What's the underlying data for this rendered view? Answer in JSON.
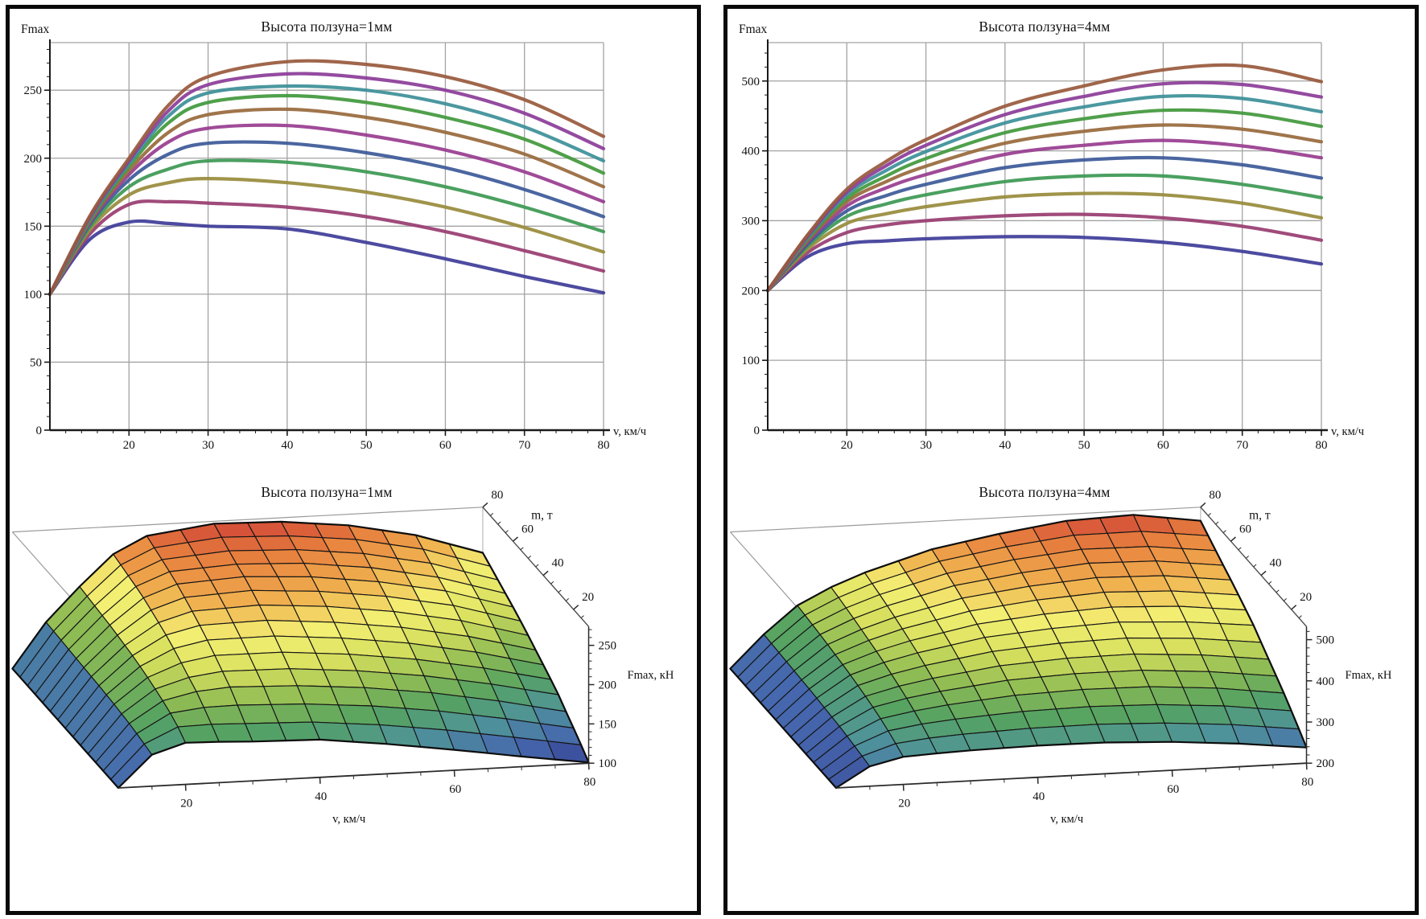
{
  "page": {
    "background": "#ffffff",
    "panel_border": "#0a0a0a"
  },
  "panels": [
    {
      "name": "slider-height-1mm",
      "line_chart": 0,
      "surface_chart": 2
    },
    {
      "name": "slider-height-4mm",
      "line_chart": 1,
      "surface_chart": 3
    }
  ],
  "chart_data": [
    {
      "type": "line",
      "title": "Высота ползуна=1мм",
      "xlabel": "v, км/ч",
      "ylabel": "Fmax",
      "x": [
        10,
        15,
        20,
        25,
        30,
        40,
        50,
        60,
        70,
        80
      ],
      "xlim": [
        10,
        80
      ],
      "ylim": [
        0,
        285
      ],
      "x_ticks": [
        20,
        30,
        40,
        50,
        60,
        70,
        80
      ],
      "y_ticks": [
        0,
        50,
        100,
        150,
        200,
        250
      ],
      "grid": true,
      "legend": "none",
      "series": [
        {
          "name": "curve-1",
          "color": "#3F3D99",
          "values": [
            100,
            140,
            153,
            152,
            150,
            148,
            138,
            126,
            113,
            101
          ]
        },
        {
          "name": "curve-2",
          "color": "#993D71",
          "values": [
            100,
            144,
            166,
            168,
            167,
            164,
            157,
            146,
            132,
            117
          ]
        },
        {
          "name": "curve-3",
          "color": "#998C3D",
          "values": [
            100,
            147,
            173,
            182,
            185,
            182,
            175,
            164,
            149,
            131
          ]
        },
        {
          "name": "curve-4",
          "color": "#3D9954",
          "values": [
            100,
            149,
            179,
            192,
            198,
            197,
            190,
            179,
            164,
            146
          ]
        },
        {
          "name": "curve-5",
          "color": "#3D5A99",
          "values": [
            100,
            151,
            184,
            203,
            211,
            211,
            204,
            193,
            177,
            157
          ]
        },
        {
          "name": "curve-6",
          "color": "#993D90",
          "values": [
            100,
            152,
            188,
            212,
            222,
            224,
            217,
            206,
            190,
            168
          ]
        },
        {
          "name": "curve-7",
          "color": "#996B3D",
          "values": [
            100,
            153,
            191,
            219,
            232,
            236,
            230,
            219,
            203,
            179
          ]
        },
        {
          "name": "curve-8",
          "color": "#43993D",
          "values": [
            100,
            154,
            194,
            226,
            241,
            246,
            241,
            230,
            214,
            189
          ]
        },
        {
          "name": "curve-9",
          "color": "#3D9099",
          "values": [
            100,
            155,
            196,
            231,
            248,
            253,
            250,
            240,
            223,
            198
          ]
        },
        {
          "name": "curve-10",
          "color": "#8C3D99",
          "values": [
            100,
            156,
            198,
            235,
            254,
            262,
            259,
            250,
            233,
            207
          ]
        },
        {
          "name": "curve-11",
          "color": "#995A3D",
          "values": [
            100,
            157,
            200,
            239,
            260,
            271,
            269,
            260,
            243,
            216
          ]
        }
      ]
    },
    {
      "type": "line",
      "title": "Высота ползуна=4мм",
      "xlabel": "v, км/ч",
      "ylabel": "Fmax",
      "x": [
        10,
        15,
        20,
        25,
        30,
        40,
        50,
        60,
        70,
        80
      ],
      "xlim": [
        10,
        80
      ],
      "ylim": [
        0,
        555
      ],
      "x_ticks": [
        20,
        30,
        40,
        50,
        60,
        70,
        80
      ],
      "y_ticks": [
        0,
        100,
        200,
        300,
        400,
        500
      ],
      "grid": true,
      "legend": "none",
      "series": [
        {
          "name": "curve-1",
          "color": "#3F3D99",
          "values": [
            200,
            248,
            267,
            271,
            274,
            277,
            276,
            269,
            256,
            238
          ]
        },
        {
          "name": "curve-2",
          "color": "#993D71",
          "values": [
            200,
            254,
            283,
            294,
            300,
            307,
            309,
            304,
            292,
            272
          ]
        },
        {
          "name": "curve-3",
          "color": "#998C3D",
          "values": [
            200,
            259,
            296,
            310,
            320,
            334,
            339,
            337,
            325,
            304
          ]
        },
        {
          "name": "curve-4",
          "color": "#3D9954",
          "values": [
            200,
            263,
            306,
            324,
            337,
            356,
            364,
            364,
            352,
            333
          ]
        },
        {
          "name": "curve-5",
          "color": "#3D5A99",
          "values": [
            200,
            266,
            314,
            336,
            352,
            376,
            387,
            390,
            380,
            361
          ]
        },
        {
          "name": "curve-6",
          "color": "#993D90",
          "values": [
            200,
            269,
            321,
            347,
            366,
            395,
            408,
            415,
            407,
            390
          ]
        },
        {
          "name": "curve-7",
          "color": "#996B3D",
          "values": [
            200,
            271,
            327,
            356,
            378,
            411,
            428,
            437,
            431,
            413
          ]
        },
        {
          "name": "curve-8",
          "color": "#43993D",
          "values": [
            200,
            273,
            332,
            364,
            389,
            426,
            446,
            458,
            454,
            435
          ]
        },
        {
          "name": "curve-9",
          "color": "#3D9099",
          "values": [
            200,
            275,
            337,
            372,
            399,
            440,
            463,
            478,
            475,
            456
          ]
        },
        {
          "name": "curve-10",
          "color": "#8C3D99",
          "values": [
            200,
            277,
            341,
            379,
            408,
            452,
            478,
            496,
            495,
            477
          ]
        },
        {
          "name": "curve-11",
          "color": "#995A3D",
          "values": [
            200,
            279,
            345,
            385,
            416,
            464,
            493,
            516,
            522,
            499
          ]
        }
      ]
    },
    {
      "type": "surface",
      "title": "Высота ползуна=1мм",
      "xlabel": "v, км/ч",
      "ylabel": "m, т",
      "zlabel": "Fmax, кН",
      "v": [
        10,
        15,
        20,
        25,
        30,
        40,
        50,
        60,
        70,
        80
      ],
      "m": [
        10,
        17,
        24,
        31,
        38,
        45,
        52,
        59,
        66,
        73,
        80
      ],
      "v_ticks": [
        20,
        40,
        60,
        80
      ],
      "m_ticks": [
        20,
        40,
        60,
        80
      ],
      "z_ticks": [
        100,
        150,
        200,
        250
      ],
      "zlim": [
        100,
        272
      ],
      "colormap": [
        "#343a8c",
        "#4668ae",
        "#4f939a",
        "#55a262",
        "#8fbc54",
        "#d8e05e",
        "#f3ef73",
        "#f0b14f",
        "#e8833f",
        "#d04236"
      ],
      "z_rows": [
        [
          100,
          140,
          153,
          152,
          150,
          148,
          138,
          126,
          113,
          101
        ],
        [
          100,
          144,
          166,
          168,
          167,
          164,
          157,
          146,
          132,
          117
        ],
        [
          100,
          147,
          173,
          182,
          185,
          182,
          175,
          164,
          149,
          131
        ],
        [
          100,
          149,
          179,
          192,
          198,
          197,
          190,
          179,
          164,
          146
        ],
        [
          100,
          151,
          184,
          203,
          211,
          211,
          204,
          193,
          177,
          157
        ],
        [
          100,
          152,
          188,
          212,
          222,
          224,
          217,
          206,
          190,
          168
        ],
        [
          100,
          153,
          191,
          219,
          232,
          236,
          230,
          219,
          203,
          179
        ],
        [
          100,
          154,
          194,
          226,
          241,
          246,
          241,
          230,
          214,
          189
        ],
        [
          100,
          155,
          196,
          231,
          248,
          253,
          250,
          240,
          223,
          198
        ],
        [
          100,
          156,
          198,
          235,
          254,
          262,
          259,
          250,
          233,
          207
        ],
        [
          100,
          157,
          200,
          239,
          260,
          271,
          269,
          260,
          243,
          216
        ]
      ]
    },
    {
      "type": "surface",
      "title": "Высота ползуна=4мм",
      "xlabel": "v, км/ч",
      "ylabel": "m, т",
      "zlabel": "Fmax, кН",
      "v": [
        10,
        15,
        20,
        25,
        30,
        40,
        50,
        60,
        70,
        80
      ],
      "m": [
        10,
        17,
        24,
        31,
        38,
        45,
        52,
        59,
        66,
        73,
        80
      ],
      "v_ticks": [
        20,
        40,
        60,
        80
      ],
      "m_ticks": [
        20,
        40,
        60,
        80
      ],
      "z_ticks": [
        200,
        300,
        400,
        500
      ],
      "zlim": [
        200,
        524
      ],
      "colormap": [
        "#343a8c",
        "#4668ae",
        "#4f939a",
        "#55a262",
        "#8fbc54",
        "#d8e05e",
        "#f3ef73",
        "#f0b14f",
        "#e8833f",
        "#d04236"
      ],
      "z_rows": [
        [
          200,
          248,
          267,
          271,
          274,
          277,
          276,
          269,
          256,
          238
        ],
        [
          200,
          254,
          283,
          294,
          300,
          307,
          309,
          304,
          292,
          272
        ],
        [
          200,
          259,
          296,
          310,
          320,
          334,
          339,
          337,
          325,
          304
        ],
        [
          200,
          263,
          306,
          324,
          337,
          356,
          364,
          364,
          352,
          333
        ],
        [
          200,
          266,
          314,
          336,
          352,
          376,
          387,
          390,
          380,
          361
        ],
        [
          200,
          269,
          321,
          347,
          366,
          395,
          408,
          415,
          407,
          390
        ],
        [
          200,
          271,
          327,
          356,
          378,
          411,
          428,
          437,
          431,
          413
        ],
        [
          200,
          273,
          332,
          364,
          389,
          426,
          446,
          458,
          454,
          435
        ],
        [
          200,
          275,
          337,
          372,
          399,
          440,
          463,
          478,
          475,
          456
        ],
        [
          200,
          277,
          341,
          379,
          408,
          452,
          478,
          496,
          495,
          477
        ],
        [
          200,
          279,
          345,
          385,
          416,
          464,
          493,
          516,
          522,
          499
        ]
      ]
    }
  ]
}
